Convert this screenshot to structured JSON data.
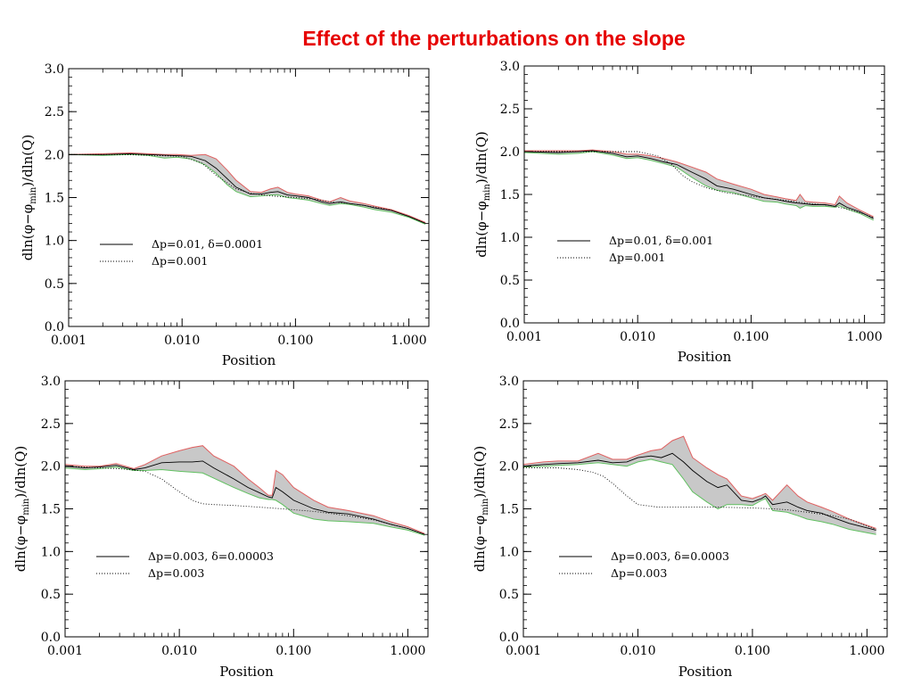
{
  "title": "Effect of the perturbations on the slope",
  "colors": {
    "title": "#e60000",
    "band": "#c8c8c8",
    "upper_edge": "#e06060",
    "lower_edge": "#60c060",
    "line": "#000000"
  },
  "chart_data": [
    {
      "type": "line",
      "xlabel": "Position",
      "ylabel": "dln(φ−φmin)/dln(Q)",
      "ylabel_parts": {
        "pre": "dln(φ−φ",
        "sub": "min",
        "post": ")/dln(Q)"
      },
      "x_scale": "log",
      "xlim": [
        0.001,
        1.5
      ],
      "ylim": [
        0.0,
        3.0
      ],
      "x_ticks": [
        "0.001",
        "0.010",
        "0.100",
        "1.000"
      ],
      "y_ticks": [
        "0.0",
        "0.5",
        "1.0",
        "1.5",
        "2.0",
        "2.5",
        "3.0"
      ],
      "legend": [
        {
          "label": "Δp=0.01,  δ=0.0001",
          "style": "solid"
        },
        {
          "label": "Δp=0.001",
          "style": "dotted"
        }
      ],
      "series": [
        {
          "name": "Δp=0.01,  δ=0.0001",
          "style": "solid",
          "x": [
            0.001,
            0.002,
            0.0035,
            0.005,
            0.008,
            0.012,
            0.016,
            0.02,
            0.025,
            0.03,
            0.04,
            0.05,
            0.06,
            0.07,
            0.085,
            0.1,
            0.13,
            0.17,
            0.2,
            0.25,
            0.3,
            0.4,
            0.5,
            0.7,
            1.0,
            1.4
          ],
          "y": [
            2.0,
            2.0,
            2.01,
            2.0,
            1.99,
            1.98,
            1.93,
            1.84,
            1.72,
            1.62,
            1.54,
            1.54,
            1.56,
            1.57,
            1.53,
            1.52,
            1.5,
            1.45,
            1.43,
            1.45,
            1.43,
            1.41,
            1.38,
            1.35,
            1.28,
            1.2
          ]
        },
        {
          "name": "Δp=0.001",
          "style": "dotted",
          "x": [
            0.001,
            0.003,
            0.006,
            0.01,
            0.015,
            0.02,
            0.03,
            0.04,
            0.06,
            0.1,
            0.15,
            0.2,
            0.3,
            0.5,
            0.7,
            1.0,
            1.4
          ],
          "y": [
            2.0,
            2.0,
            1.99,
            1.98,
            1.9,
            1.76,
            1.6,
            1.55,
            1.52,
            1.5,
            1.48,
            1.45,
            1.43,
            1.39,
            1.35,
            1.28,
            1.2
          ]
        }
      ],
      "band": {
        "x": [
          0.001,
          0.002,
          0.0035,
          0.005,
          0.007,
          0.009,
          0.012,
          0.016,
          0.02,
          0.025,
          0.03,
          0.04,
          0.05,
          0.06,
          0.07,
          0.085,
          0.1,
          0.13,
          0.17,
          0.2,
          0.25,
          0.3,
          0.4,
          0.5,
          0.7,
          1.0,
          1.4
        ],
        "upper": [
          2.0,
          2.01,
          2.02,
          2.01,
          2.0,
          2.0,
          1.99,
          2.0,
          1.95,
          1.82,
          1.7,
          1.57,
          1.56,
          1.6,
          1.62,
          1.56,
          1.54,
          1.52,
          1.47,
          1.45,
          1.5,
          1.46,
          1.43,
          1.4,
          1.36,
          1.29,
          1.21
        ],
        "lower": [
          2.0,
          1.99,
          2.0,
          1.99,
          1.96,
          1.97,
          1.95,
          1.88,
          1.78,
          1.65,
          1.57,
          1.51,
          1.52,
          1.53,
          1.53,
          1.5,
          1.49,
          1.47,
          1.43,
          1.41,
          1.43,
          1.42,
          1.39,
          1.36,
          1.33,
          1.27,
          1.19
        ]
      }
    },
    {
      "type": "line",
      "xlabel": "Position",
      "ylabel": "dln(φ−φmin)/dln(Q)",
      "ylabel_parts": {
        "pre": "dln(φ−φ",
        "sub": "min",
        "post": ")/dln(Q)"
      },
      "x_scale": "log",
      "xlim": [
        0.001,
        1.5
      ],
      "ylim": [
        0.0,
        3.0
      ],
      "x_ticks": [
        "0.001",
        "0.010",
        "0.100",
        "1.000"
      ],
      "y_ticks": [
        "0.0",
        "0.5",
        "1.0",
        "1.5",
        "2.0",
        "2.5",
        "3.0"
      ],
      "legend": [
        {
          "label": "Δp=0.01,  δ=0.001",
          "style": "solid"
        },
        {
          "label": "Δp=0.001",
          "style": "dotted"
        }
      ],
      "series": [
        {
          "name": "Δp=0.01,  δ=0.001",
          "style": "solid",
          "x": [
            0.001,
            0.002,
            0.003,
            0.004,
            0.006,
            0.008,
            0.01,
            0.013,
            0.017,
            0.022,
            0.03,
            0.04,
            0.05,
            0.07,
            0.1,
            0.13,
            0.17,
            0.2,
            0.25,
            0.3,
            0.35,
            0.45,
            0.55,
            0.6,
            0.7,
            0.9,
            1.2
          ],
          "y": [
            2.0,
            1.99,
            2.0,
            2.01,
            1.98,
            1.94,
            1.95,
            1.92,
            1.88,
            1.85,
            1.76,
            1.68,
            1.6,
            1.56,
            1.5,
            1.46,
            1.44,
            1.42,
            1.4,
            1.39,
            1.38,
            1.38,
            1.36,
            1.4,
            1.35,
            1.3,
            1.22
          ]
        },
        {
          "name": "Δp=0.001",
          "style": "dotted",
          "x": [
            0.001,
            0.003,
            0.005,
            0.01,
            0.015,
            0.02,
            0.025,
            0.03,
            0.04,
            0.06,
            0.1,
            0.15,
            0.2,
            0.3,
            0.5,
            0.7,
            1.0,
            1.2
          ],
          "y": [
            2.0,
            2.0,
            2.0,
            2.0,
            1.95,
            1.85,
            1.72,
            1.65,
            1.58,
            1.52,
            1.48,
            1.45,
            1.43,
            1.4,
            1.37,
            1.33,
            1.27,
            1.23
          ]
        }
      ],
      "band": {
        "x": [
          0.001,
          0.002,
          0.003,
          0.004,
          0.006,
          0.008,
          0.01,
          0.013,
          0.017,
          0.022,
          0.03,
          0.04,
          0.05,
          0.07,
          0.1,
          0.13,
          0.17,
          0.2,
          0.25,
          0.27,
          0.3,
          0.35,
          0.45,
          0.55,
          0.6,
          0.7,
          0.9,
          1.2
        ],
        "upper": [
          2.01,
          2.01,
          2.01,
          2.02,
          2.0,
          1.97,
          1.97,
          1.95,
          1.92,
          1.88,
          1.82,
          1.76,
          1.68,
          1.62,
          1.56,
          1.5,
          1.47,
          1.45,
          1.43,
          1.5,
          1.42,
          1.41,
          1.4,
          1.38,
          1.48,
          1.4,
          1.32,
          1.24
        ],
        "lower": [
          1.99,
          1.97,
          1.98,
          2.0,
          1.96,
          1.92,
          1.93,
          1.9,
          1.86,
          1.82,
          1.7,
          1.6,
          1.55,
          1.52,
          1.46,
          1.42,
          1.41,
          1.39,
          1.37,
          1.34,
          1.37,
          1.36,
          1.36,
          1.35,
          1.37,
          1.33,
          1.28,
          1.2
        ]
      }
    },
    {
      "type": "line",
      "xlabel": "Position",
      "ylabel": "dln(φ−φmin)/dln(Q)",
      "ylabel_parts": {
        "pre": "dln(φ−φ",
        "sub": "min",
        "post": ")/dln(Q)"
      },
      "x_scale": "log",
      "xlim": [
        0.001,
        1.5
      ],
      "ylim": [
        0.0,
        3.0
      ],
      "x_ticks": [
        "0.001",
        "0.010",
        "0.100",
        "1.000"
      ],
      "y_ticks": [
        "0.0",
        "0.5",
        "1.0",
        "1.5",
        "2.0",
        "2.5",
        "3.0"
      ],
      "legend": [
        {
          "label": "Δp=0.003,  δ=0.00003",
          "style": "solid"
        },
        {
          "label": "Δp=0.003",
          "style": "dotted"
        }
      ],
      "series": [
        {
          "name": "Δp=0.003,  δ=0.00003",
          "style": "solid",
          "x": [
            0.001,
            0.0015,
            0.002,
            0.0028,
            0.004,
            0.005,
            0.007,
            0.01,
            0.013,
            0.016,
            0.02,
            0.03,
            0.04,
            0.05,
            0.06,
            0.065,
            0.07,
            0.08,
            0.1,
            0.15,
            0.2,
            0.3,
            0.5,
            0.7,
            1.0,
            1.4
          ],
          "y": [
            2.0,
            1.98,
            1.99,
            2.01,
            1.96,
            1.98,
            2.04,
            2.05,
            2.05,
            2.06,
            1.98,
            1.85,
            1.75,
            1.69,
            1.64,
            1.63,
            1.75,
            1.7,
            1.6,
            1.5,
            1.46,
            1.44,
            1.38,
            1.32,
            1.27,
            1.2
          ]
        },
        {
          "name": "Δp=0.003",
          "style": "dotted",
          "x": [
            0.001,
            0.002,
            0.003,
            0.005,
            0.007,
            0.01,
            0.013,
            0.016,
            0.02,
            0.03,
            0.05,
            0.08,
            0.1,
            0.15,
            0.2,
            0.3,
            0.5,
            0.7,
            1.0,
            1.4
          ],
          "y": [
            2.0,
            1.98,
            1.97,
            1.94,
            1.85,
            1.7,
            1.6,
            1.56,
            1.55,
            1.54,
            1.52,
            1.5,
            1.49,
            1.47,
            1.45,
            1.42,
            1.37,
            1.32,
            1.27,
            1.2
          ]
        }
      ],
      "band": {
        "x": [
          0.001,
          0.0015,
          0.002,
          0.0028,
          0.004,
          0.005,
          0.007,
          0.01,
          0.013,
          0.016,
          0.02,
          0.03,
          0.04,
          0.05,
          0.06,
          0.065,
          0.07,
          0.08,
          0.1,
          0.15,
          0.2,
          0.3,
          0.5,
          0.7,
          1.0,
          1.4
        ],
        "upper": [
          2.02,
          2.0,
          2.0,
          2.03,
          1.97,
          2.02,
          2.12,
          2.18,
          2.22,
          2.24,
          2.12,
          2.0,
          1.85,
          1.75,
          1.66,
          1.66,
          1.95,
          1.9,
          1.75,
          1.6,
          1.52,
          1.48,
          1.42,
          1.35,
          1.29,
          1.21
        ],
        "lower": [
          1.98,
          1.96,
          1.97,
          1.99,
          1.95,
          1.95,
          1.96,
          1.94,
          1.93,
          1.92,
          1.86,
          1.75,
          1.68,
          1.63,
          1.61,
          1.61,
          1.6,
          1.55,
          1.45,
          1.38,
          1.36,
          1.35,
          1.33,
          1.29,
          1.25,
          1.19
        ]
      }
    },
    {
      "type": "line",
      "xlabel": "Position",
      "ylabel": "dln(φ−φmin)/dln(Q)",
      "ylabel_parts": {
        "pre": "dln(φ−φ",
        "sub": "min",
        "post": ")/dln(Q)"
      },
      "x_scale": "log",
      "xlim": [
        0.001,
        1.5
      ],
      "ylim": [
        0.0,
        3.0
      ],
      "x_ticks": [
        "0.001",
        "0.010",
        "0.100",
        "1.000"
      ],
      "y_ticks": [
        "0.0",
        "0.5",
        "1.0",
        "1.5",
        "2.0",
        "2.5",
        "3.0"
      ],
      "legend": [
        {
          "label": "Δp=0.003,  δ=0.0003",
          "style": "solid"
        },
        {
          "label": "Δp=0.003",
          "style": "dotted"
        }
      ],
      "series": [
        {
          "name": "Δp=0.003,  δ=0.0003",
          "style": "solid",
          "x": [
            0.001,
            0.0015,
            0.002,
            0.003,
            0.0045,
            0.006,
            0.008,
            0.01,
            0.013,
            0.016,
            0.02,
            0.025,
            0.03,
            0.04,
            0.05,
            0.06,
            0.08,
            0.1,
            0.12,
            0.13,
            0.15,
            0.2,
            0.25,
            0.3,
            0.4,
            0.5,
            0.7,
            1.2
          ],
          "y": [
            2.0,
            2.02,
            2.03,
            2.04,
            2.07,
            2.04,
            2.05,
            2.1,
            2.12,
            2.1,
            2.15,
            2.05,
            1.95,
            1.82,
            1.75,
            1.78,
            1.6,
            1.58,
            1.62,
            1.65,
            1.55,
            1.58,
            1.52,
            1.48,
            1.45,
            1.4,
            1.33,
            1.25
          ]
        },
        {
          "name": "Δp=0.003",
          "style": "dotted",
          "x": [
            0.001,
            0.002,
            0.003,
            0.004,
            0.005,
            0.006,
            0.007,
            0.008,
            0.01,
            0.015,
            0.02,
            0.03,
            0.05,
            0.1,
            0.15,
            0.2,
            0.3,
            0.5,
            0.7,
            1.0,
            1.2
          ],
          "y": [
            1.98,
            1.98,
            1.96,
            1.93,
            1.88,
            1.8,
            1.72,
            1.65,
            1.55,
            1.52,
            1.52,
            1.52,
            1.52,
            1.51,
            1.5,
            1.49,
            1.46,
            1.42,
            1.38,
            1.3,
            1.26
          ]
        }
      ],
      "band": {
        "x": [
          0.001,
          0.0015,
          0.002,
          0.003,
          0.0045,
          0.006,
          0.008,
          0.01,
          0.013,
          0.016,
          0.02,
          0.025,
          0.03,
          0.04,
          0.05,
          0.06,
          0.08,
          0.1,
          0.12,
          0.13,
          0.15,
          0.2,
          0.25,
          0.3,
          0.4,
          0.5,
          0.7,
          1.2
        ],
        "upper": [
          2.02,
          2.05,
          2.06,
          2.06,
          2.15,
          2.08,
          2.08,
          2.13,
          2.18,
          2.2,
          2.3,
          2.35,
          2.1,
          1.98,
          1.9,
          1.85,
          1.65,
          1.62,
          1.66,
          1.68,
          1.6,
          1.78,
          1.65,
          1.58,
          1.52,
          1.47,
          1.38,
          1.27
        ],
        "lower": [
          1.99,
          2.0,
          2.01,
          2.02,
          2.04,
          2.02,
          2.0,
          2.05,
          2.08,
          2.05,
          2.02,
          1.85,
          1.7,
          1.58,
          1.5,
          1.55,
          1.55,
          1.54,
          1.6,
          1.62,
          1.48,
          1.46,
          1.42,
          1.38,
          1.35,
          1.32,
          1.26,
          1.2
        ]
      }
    }
  ]
}
